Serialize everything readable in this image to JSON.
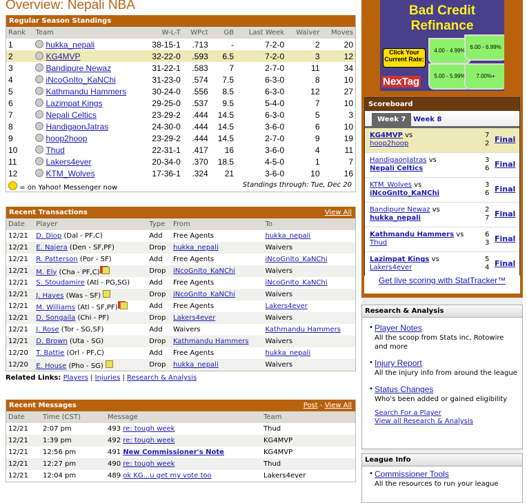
{
  "title": "Overview: Nepali NBA",
  "colors": {
    "header": "#b8620e",
    "link": "#1b1bb5",
    "highlight": "#eeeab8"
  },
  "standings": {
    "heading": "Regular Season Standings",
    "columns": [
      "Rank",
      "Team",
      "W-L-T",
      "WPct",
      "GB",
      "Last Week",
      "Waiver",
      "Moves"
    ],
    "rows": [
      [
        "1",
        "hukka_nepali",
        "38-15-1",
        ".713",
        "-",
        "7-2-0",
        "2",
        "20"
      ],
      [
        "2",
        "KG4MVP",
        "32-22-0",
        ".593",
        "6.5",
        "7-2-0",
        "3",
        "12"
      ],
      [
        "3",
        "Bandipure Newaz",
        "31-22-1",
        ".583",
        "7",
        "2-7-0",
        "11",
        "34"
      ],
      [
        "4",
        "iNcoGnIto_KaNChi",
        "31-23-0",
        ".574",
        "7.5",
        "6-3-0",
        "8",
        "10"
      ],
      [
        "5",
        "Kathmandu Hammers",
        "30-24-0",
        ".556",
        "8.5",
        "6-3-0",
        "12",
        "27"
      ],
      [
        "6",
        "Lazimpat Kings",
        "29-25-0",
        ".537",
        "9.5",
        "5-4-0",
        "7",
        "10"
      ],
      [
        "7",
        "Nepali Celtics",
        "23-29-2",
        ".444",
        "14.5",
        "6-3-0",
        "5",
        "3"
      ],
      [
        "8",
        "HandigaonJatras",
        "24-30-0",
        ".444",
        "14.5",
        "3-6-0",
        "6",
        "10"
      ],
      [
        "9",
        "hoop2hoop",
        "23-29-2",
        ".444",
        "14.5",
        "2-7-0",
        "9",
        "19"
      ],
      [
        "10",
        "Thud",
        "22-31-1",
        ".417",
        "16",
        "3-6-0",
        "4",
        "11"
      ],
      [
        "11",
        "Lakers4ever",
        "20-34-0",
        ".370",
        "18.5",
        "4-5-0",
        "1",
        "7"
      ],
      [
        "12",
        "KTM_Wolves",
        "17-36-1",
        ".324",
        "21",
        "3-6-0",
        "10",
        "16"
      ]
    ],
    "highlight_rank": "2",
    "legend": "= on Yahoo! Messenger now",
    "through": "Standings through: Tue, Dec 20"
  },
  "transactions": {
    "heading": "Recent Transactions",
    "view_all": "View All",
    "columns": [
      "Date",
      "Player",
      "Type",
      "From",
      "To"
    ],
    "rows": [
      {
        "date": "12/21",
        "player": "D. Diop",
        "info": "(Dal - PF,C)",
        "note": "",
        "type": "Add",
        "from": "Free Agents",
        "from_link": false,
        "to": "hukka_nepali",
        "to_link": true
      },
      {
        "date": "12/21",
        "player": "E. Najera",
        "info": "(Den - SF,PF)",
        "note": "",
        "type": "Drop",
        "from": "hukka_nepali",
        "from_link": true,
        "to": "Waivers",
        "to_link": false
      },
      {
        "date": "12/21",
        "player": "R. Patterson",
        "info": "(Por - SF)",
        "note": "",
        "type": "Add",
        "from": "Free Agents",
        "from_link": false,
        "to": "iNcoGnIto_KaNChi",
        "to_link": true
      },
      {
        "date": "12/21",
        "player": "M. Ely",
        "info": "(Cha - PF,C)",
        "note": "new-note",
        "type": "Drop",
        "from": "iNcoGnIto_KaNChi",
        "from_link": true,
        "to": "Waivers",
        "to_link": false
      },
      {
        "date": "12/21",
        "player": "S. Stoudamire",
        "info": "(Atl - PG,SG)",
        "note": "",
        "type": "Add",
        "from": "Free Agents",
        "from_link": false,
        "to": "iNcoGnIto_KaNChi",
        "to_link": true
      },
      {
        "date": "12/21",
        "player": "J. Hayes",
        "info": "(Was - SF)",
        "note": "note",
        "type": "Drop",
        "from": "iNcoGnIto_KaNChi",
        "from_link": true,
        "to": "Waivers",
        "to_link": false
      },
      {
        "date": "12/21",
        "player": "M. Williams",
        "info": "(Atl - SF,PF)",
        "note": "new-note",
        "type": "Add",
        "from": "Free Agents",
        "from_link": false,
        "to": "Lakers4ever",
        "to_link": true
      },
      {
        "date": "12/21",
        "player": "D. Songaila",
        "info": "(Chi - PF)",
        "note": "",
        "type": "Drop",
        "from": "Lakers4ever",
        "from_link": true,
        "to": "Waivers",
        "to_link": false
      },
      {
        "date": "12/21",
        "player": "J. Rose",
        "info": "(Tor - SG,SF)",
        "note": "",
        "type": "Add",
        "from": "Waivers",
        "from_link": false,
        "to": "Kathmandu Hammers",
        "to_link": true
      },
      {
        "date": "12/21",
        "player": "D. Brown",
        "info": "(Uta - SG)",
        "note": "",
        "type": "Drop",
        "from": "Kathmandu Hammers",
        "from_link": true,
        "to": "Waivers",
        "to_link": false
      },
      {
        "date": "12/20",
        "player": "T. Battie",
        "info": "(Orl - PF,C)",
        "note": "",
        "type": "Add",
        "from": "Free Agents",
        "from_link": false,
        "to": "hukka_nepali",
        "to_link": true
      },
      {
        "date": "12/20",
        "player": "E. House",
        "info": "(Pho - SG)",
        "note": "note",
        "type": "Drop",
        "from": "hukka_nepali",
        "from_link": true,
        "to": "Waivers",
        "to_link": false
      }
    ]
  },
  "related": {
    "label": "Related Links:",
    "links": [
      "Players",
      "Injuries",
      "Research & Analysis"
    ]
  },
  "messages": {
    "heading": "Recent Messages",
    "post": "Post",
    "sep": "-",
    "view_all": "View All",
    "columns": [
      "Date",
      "Time (CST)",
      "Message",
      "Team"
    ],
    "rows": [
      {
        "date": "12/21",
        "time": "2:07 pm",
        "num": "493",
        "msg": "re: tough week",
        "bold": false,
        "team": "Thud"
      },
      {
        "date": "12/21",
        "time": "1:39 pm",
        "num": "492",
        "msg": "re: tough week",
        "bold": false,
        "team": "KG4MVP"
      },
      {
        "date": "12/21",
        "time": "12:56 pm",
        "num": "491",
        "msg": "New Commissioner's Note",
        "bold": true,
        "team": "KG4MVP"
      },
      {
        "date": "12/21",
        "time": "12:27 pm",
        "num": "490",
        "msg": "re: tough week",
        "bold": false,
        "team": "Thud"
      },
      {
        "date": "12/21",
        "time": "12:04 pm",
        "num": "489",
        "msg": "ok KG...u get my vote too",
        "bold": false,
        "team": "Lakers4ever"
      }
    ]
  },
  "ad": {
    "title": "Bad Credit Refinance",
    "cta": "Click Your Current Rate:",
    "jars": [
      "4.00 - 4.99%",
      "6.00 - 6.99%",
      "5.00 - 5.99%",
      "7.00%+"
    ],
    "brand": "NexTag"
  },
  "scoreboard": {
    "heading": "Scoreboard",
    "tabs": [
      "Week 7",
      "Week 8"
    ],
    "vs": "vs",
    "final": "Final",
    "games": [
      {
        "a": "KG4MVP",
        "sa": "7",
        "b": "hoop2hoop",
        "sb": "2",
        "winner": "a",
        "highlight": true
      },
      {
        "a": "HandigaonJatras",
        "sa": "3",
        "b": "Nepali Celtics",
        "sb": "6",
        "winner": "b",
        "highlight": false
      },
      {
        "a": "KTM_Wolves",
        "sa": "3",
        "b": "iNcoGnIto_KaNChi",
        "sb": "6",
        "winner": "b",
        "highlight": false
      },
      {
        "a": "Bandipure Newaz",
        "sa": "2",
        "b": "hukka_nepali",
        "sb": "7",
        "winner": "b",
        "highlight": false
      },
      {
        "a": "Kathmandu Hammers",
        "sa": "6",
        "b": "Thud",
        "sb": "3",
        "winner": "a",
        "highlight": false
      },
      {
        "a": "Lazimpat Kings",
        "sa": "5",
        "b": "Lakers4ever",
        "sb": "4",
        "winner": "a",
        "highlight": false
      }
    ]
  },
  "stattracker": "Get live scoring with StatTracker™",
  "research": {
    "heading": "Research & Analysis",
    "items": [
      {
        "label": "Player Notes",
        "desc": "All the scoop from Stats inc, Rotowire and more"
      },
      {
        "label": "Injury Report",
        "desc": "All the injury info from around the league"
      },
      {
        "label": "Status Changes",
        "desc": "Who's been added or gained eligibility"
      }
    ],
    "links": [
      "Search For a Player",
      "View all Research & Analysis"
    ]
  },
  "league_info": {
    "heading": "League Info",
    "items": [
      {
        "label": "Commissioner Tools",
        "desc": "All the resources to run your league"
      }
    ]
  }
}
